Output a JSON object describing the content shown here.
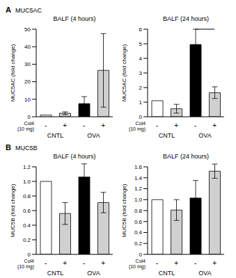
{
  "chart_data": [
    {
      "type": "bar",
      "panel": "A",
      "panel_title": "MUC5AC",
      "title": "BALF (4 hours)",
      "y_label": "MUC5AC (fold change)",
      "x_label": "Col4 (10 mg)",
      "categories": [
        "-",
        "+",
        "-",
        "+"
      ],
      "groups": [
        "CNTL",
        "OVA"
      ],
      "values": [
        1,
        2,
        7.5,
        26.5
      ],
      "errors": [
        0,
        0.8,
        4,
        21
      ],
      "colors": [
        "#ffffff",
        "#d0d0d0",
        "#000000",
        "#d0d0d0"
      ],
      "ylim": [
        0,
        50
      ],
      "yticks": [
        0,
        10,
        20,
        30,
        40,
        50
      ]
    },
    {
      "type": "bar",
      "title": "BALF (24 hours)",
      "y_label": "MUC5AC (fold change)",
      "x_label": "Col4 (10 mg)",
      "categories": [
        "-",
        "+",
        "-",
        "+"
      ],
      "groups": [
        "CNTL",
        "OVA"
      ],
      "values": [
        1.1,
        0.55,
        4.95,
        1.65
      ],
      "errors": [
        0,
        0.3,
        1.05,
        0.4
      ],
      "colors": [
        "#ffffff",
        "#d0d0d0",
        "#000000",
        "#d0d0d0"
      ],
      "ylim": [
        0,
        6
      ],
      "yticks": [
        0,
        1,
        2,
        3,
        4,
        5,
        6
      ],
      "annotations": [
        {
          "text": "*",
          "between": [
            2,
            3
          ]
        }
      ]
    },
    {
      "type": "bar",
      "panel": "B",
      "panel_title": "MUC5B",
      "title": "BALF (4 hours)",
      "y_label": "MUC5B (fold change)",
      "x_label": "Col4 (10 mg)",
      "categories": [
        "-",
        "+",
        "-",
        "+"
      ],
      "groups": [
        "CNTL",
        "OVA"
      ],
      "values": [
        1.0,
        0.56,
        1.06,
        0.71
      ],
      "errors": [
        0,
        0.15,
        0.18,
        0.14
      ],
      "colors": [
        "#ffffff",
        "#d0d0d0",
        "#000000",
        "#d0d0d0"
      ],
      "ylim": [
        0,
        1.2
      ],
      "yticks": [
        0,
        0.2,
        0.4,
        0.6,
        0.8,
        {
          "value": 1,
          "label": "1.0"
        },
        1.2
      ]
    },
    {
      "type": "bar",
      "title": "BALF (24 hours)",
      "y_label": "MUC5B (fold change)",
      "x_label": "Col4 (10 mg)",
      "categories": [
        "-",
        "+",
        "-",
        "+"
      ],
      "groups": [
        "CNTL",
        "OVA"
      ],
      "values": [
        1.0,
        0.81,
        1.03,
        1.52
      ],
      "errors": [
        0,
        0.19,
        0.32,
        0.13
      ],
      "colors": [
        "#ffffff",
        "#d0d0d0",
        "#000000",
        "#d0d0d0"
      ],
      "ylim": [
        0,
        1.6
      ],
      "yticks": [
        0,
        0.2,
        0.4,
        0.6,
        0.8,
        {
          "value": 1,
          "label": "1.0"
        },
        1.2,
        1.4,
        1.6
      ]
    }
  ]
}
